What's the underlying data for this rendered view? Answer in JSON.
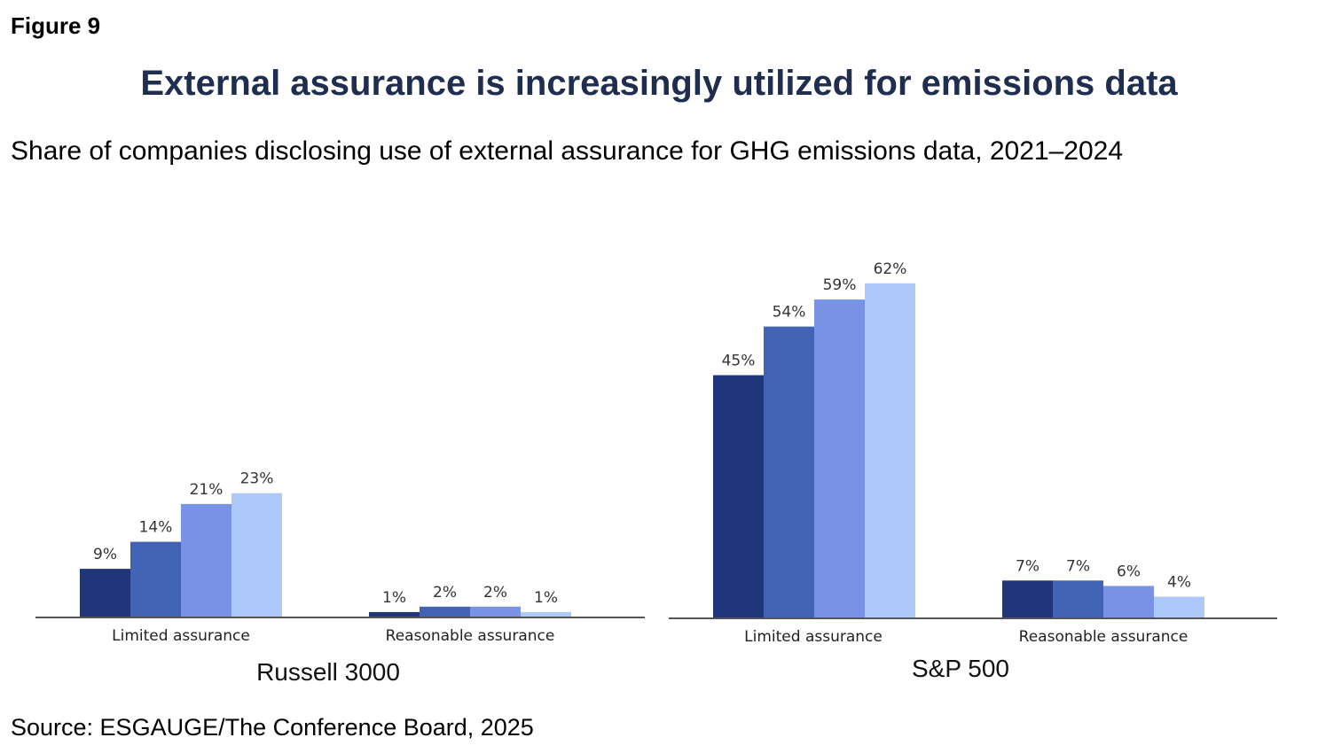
{
  "header": {
    "figure_label": "Figure 9",
    "title": "External assurance is increasingly utilized for emissions data",
    "subtitle": "Share of companies disclosing use of external assurance for GHG emissions data, 2021–2024"
  },
  "footer": {
    "source": "Source: ESGAUGE/The Conference Board, 2025"
  },
  "colors": {
    "title": "#1f2d4e",
    "series": [
      "#21357a",
      "#4263b4",
      "#7893e5",
      "#adc9fa"
    ],
    "axis": "#555555"
  },
  "chart_data": [
    {
      "type": "bar",
      "title": "Russell 3000",
      "categories": [
        "Limited assurance",
        "Reasonable assurance"
      ],
      "series": [
        {
          "values": [
            9,
            1
          ],
          "labels": [
            "9%",
            "1%"
          ]
        },
        {
          "values": [
            14,
            2
          ],
          "labels": [
            "14%",
            "2%"
          ]
        },
        {
          "values": [
            21,
            2
          ],
          "labels": [
            "21%",
            "2%"
          ]
        },
        {
          "values": [
            23,
            1
          ],
          "labels": [
            "23%",
            "1%"
          ]
        }
      ],
      "ylim": [
        0,
        65
      ],
      "grid": false
    },
    {
      "type": "bar",
      "title": "S&P 500",
      "categories": [
        "Limited assurance",
        "Reasonable assurance"
      ],
      "series": [
        {
          "values": [
            45,
            7
          ],
          "labels": [
            "45%",
            "7%"
          ]
        },
        {
          "values": [
            54,
            7
          ],
          "labels": [
            "54%",
            "7%"
          ]
        },
        {
          "values": [
            59,
            6
          ],
          "labels": [
            "59%",
            "6%"
          ]
        },
        {
          "values": [
            62,
            4
          ],
          "labels": [
            "62%",
            "4%"
          ]
        }
      ],
      "ylim": [
        0,
        65
      ],
      "grid": false
    }
  ]
}
